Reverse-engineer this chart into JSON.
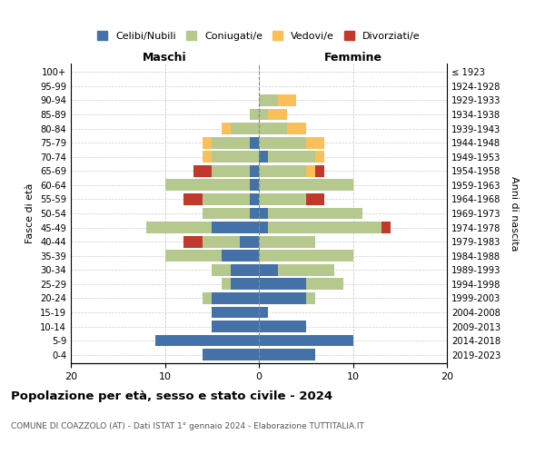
{
  "age_groups": [
    "0-4",
    "5-9",
    "10-14",
    "15-19",
    "20-24",
    "25-29",
    "30-34",
    "35-39",
    "40-44",
    "45-49",
    "50-54",
    "55-59",
    "60-64",
    "65-69",
    "70-74",
    "75-79",
    "80-84",
    "85-89",
    "90-94",
    "95-99",
    "100+"
  ],
  "birth_years": [
    "2019-2023",
    "2014-2018",
    "2009-2013",
    "2004-2008",
    "1999-2003",
    "1994-1998",
    "1989-1993",
    "1984-1988",
    "1979-1983",
    "1974-1978",
    "1969-1973",
    "1964-1968",
    "1959-1963",
    "1954-1958",
    "1949-1953",
    "1944-1948",
    "1939-1943",
    "1934-1938",
    "1929-1933",
    "1924-1928",
    "≤ 1923"
  ],
  "maschi": {
    "celibi": [
      6,
      11,
      5,
      5,
      5,
      3,
      3,
      4,
      2,
      5,
      1,
      1,
      1,
      1,
      0,
      1,
      0,
      0,
      0,
      0,
      0
    ],
    "coniugati": [
      0,
      0,
      0,
      0,
      1,
      1,
      2,
      6,
      4,
      7,
      5,
      5,
      9,
      4,
      5,
      4,
      3,
      1,
      0,
      0,
      0
    ],
    "vedovi": [
      0,
      0,
      0,
      0,
      0,
      0,
      0,
      0,
      0,
      0,
      0,
      0,
      0,
      0,
      1,
      1,
      1,
      0,
      0,
      0,
      0
    ],
    "divorziati": [
      0,
      0,
      0,
      0,
      0,
      0,
      0,
      0,
      2,
      0,
      0,
      2,
      0,
      2,
      0,
      0,
      0,
      0,
      0,
      0,
      0
    ]
  },
  "femmine": {
    "nubili": [
      6,
      10,
      5,
      1,
      5,
      5,
      2,
      0,
      0,
      1,
      1,
      0,
      0,
      0,
      1,
      0,
      0,
      0,
      0,
      0,
      0
    ],
    "coniugate": [
      0,
      0,
      0,
      0,
      1,
      4,
      6,
      10,
      6,
      12,
      10,
      5,
      10,
      5,
      5,
      5,
      3,
      1,
      2,
      0,
      0
    ],
    "vedove": [
      0,
      0,
      0,
      0,
      0,
      0,
      0,
      0,
      0,
      0,
      0,
      0,
      0,
      1,
      1,
      2,
      2,
      2,
      2,
      0,
      0
    ],
    "divorziate": [
      0,
      0,
      0,
      0,
      0,
      0,
      0,
      0,
      0,
      1,
      0,
      2,
      0,
      1,
      0,
      0,
      0,
      0,
      0,
      0,
      0
    ]
  },
  "colors": {
    "celibi": "#4472a8",
    "coniugati": "#b5c98e",
    "vedovi": "#fbbf5a",
    "divorziati": "#c0392b"
  },
  "xlim": [
    -20,
    20
  ],
  "xticks": [
    -20,
    -10,
    0,
    10,
    20
  ],
  "xticklabels": [
    "20",
    "10",
    "0",
    "10",
    "20"
  ],
  "title": "Popolazione per età, sesso e stato civile - 2024",
  "subtitle": "COMUNE DI COAZZOLO (AT) - Dati ISTAT 1° gennaio 2024 - Elaborazione TUTTITALIA.IT",
  "ylabel_left": "Fasce di età",
  "ylabel_right": "Anni di nascita",
  "label_maschi": "Maschi",
  "label_femmine": "Femmine",
  "legend_labels": [
    "Celibi/Nubili",
    "Coniugati/e",
    "Vedovi/e",
    "Divorziati/e"
  ]
}
